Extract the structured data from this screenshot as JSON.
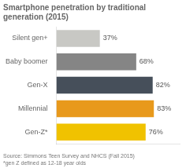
{
  "chart_data": {
    "type": "bar",
    "orientation": "horizontal",
    "title": "Smartphone penetration by traditional\ngeneration (2015)",
    "categories": [
      "Gen-Z*",
      "Millennial",
      "Gen-X",
      "Baby boomer",
      "Silent gen+"
    ],
    "values": [
      76,
      83,
      82,
      68,
      37
    ],
    "value_labels": [
      "76%",
      "83%",
      "82%",
      "68%",
      "37%"
    ],
    "data_labels": true,
    "colors": [
      "#f0c200",
      "#e8991c",
      "#464f5a",
      "#858585",
      "#c8c8c4"
    ],
    "xlim": [
      0,
      105
    ],
    "tick_labels": "y",
    "grid": false,
    "annotations": [
      "Source: Simmons Teen Survey and NHCS (Fall 2015)\n*gen Z defined as 12-18 year olds"
    ]
  }
}
